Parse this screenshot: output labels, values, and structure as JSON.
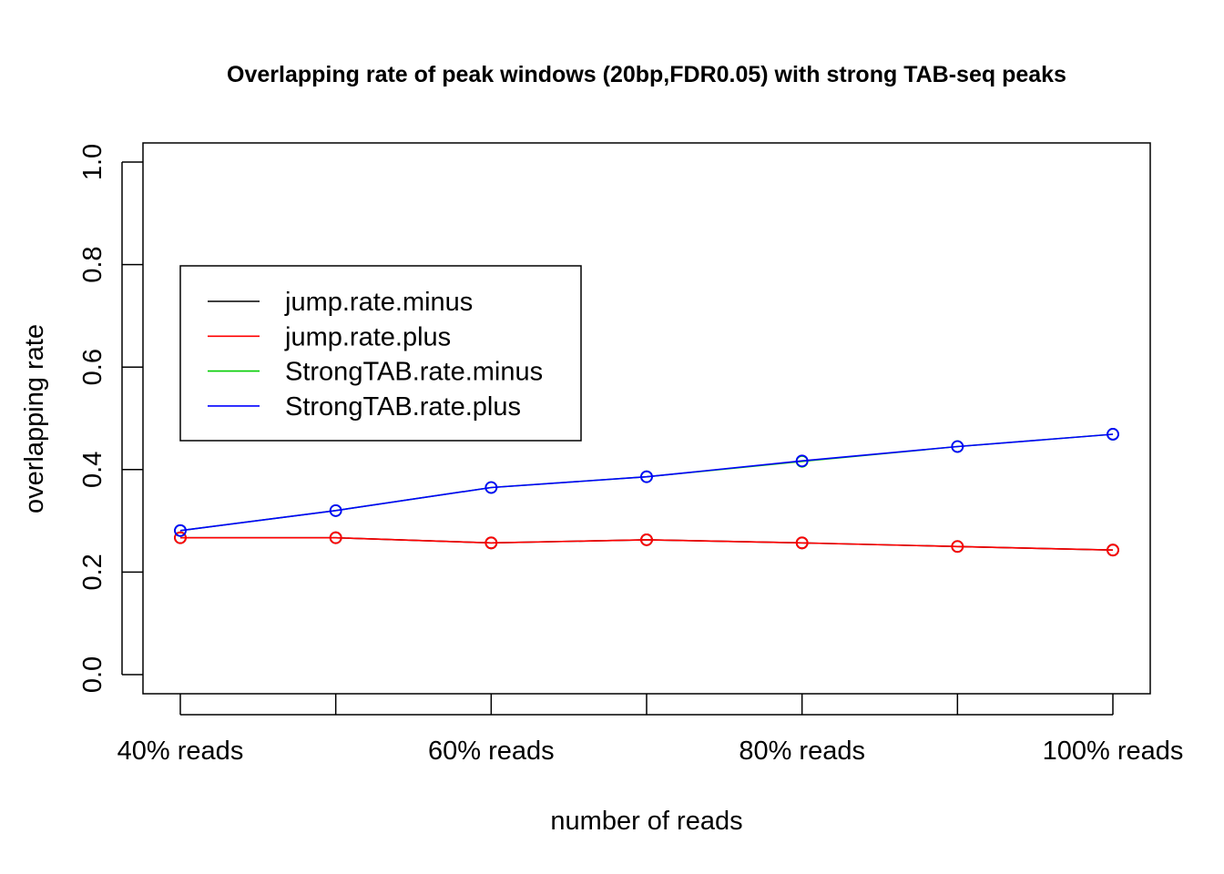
{
  "chart_data": {
    "type": "line",
    "title": "Overlapping rate of peak windows (20bp,FDR0.05) with strong TAB-seq peaks",
    "xlabel": "number of reads",
    "ylabel": "overlapping rate",
    "x": [
      40,
      50,
      60,
      70,
      80,
      90,
      100
    ],
    "x_tick_values": [
      40,
      60,
      80,
      100
    ],
    "x_tick_labels": [
      "40% reads",
      "60% reads",
      "80% reads",
      "100% reads"
    ],
    "ylim": [
      0,
      1
    ],
    "y_ticks": [
      0.0,
      0.2,
      0.4,
      0.6,
      0.8,
      1.0
    ],
    "y_tick_labels": [
      "0.0",
      "0.2",
      "0.4",
      "0.6",
      "0.8",
      "1.0"
    ],
    "grid": false,
    "legend_position": "top-left",
    "series": [
      {
        "name": "jump.rate.minus",
        "color": "#000000",
        "values": [
          0.267,
          0.267,
          0.257,
          0.263,
          0.257,
          0.25,
          0.243
        ]
      },
      {
        "name": "jump.rate.plus",
        "color": "#ff0000",
        "values": [
          0.267,
          0.267,
          0.257,
          0.263,
          0.257,
          0.25,
          0.243
        ]
      },
      {
        "name": "StrongTAB.rate.minus",
        "color": "#00cd00",
        "values": [
          0.281,
          0.32,
          0.365,
          0.386,
          0.416,
          0.445,
          0.469
        ]
      },
      {
        "name": "StrongTAB.rate.plus",
        "color": "#0000ff",
        "values": [
          0.281,
          0.32,
          0.365,
          0.386,
          0.417,
          0.445,
          0.469
        ]
      }
    ]
  }
}
